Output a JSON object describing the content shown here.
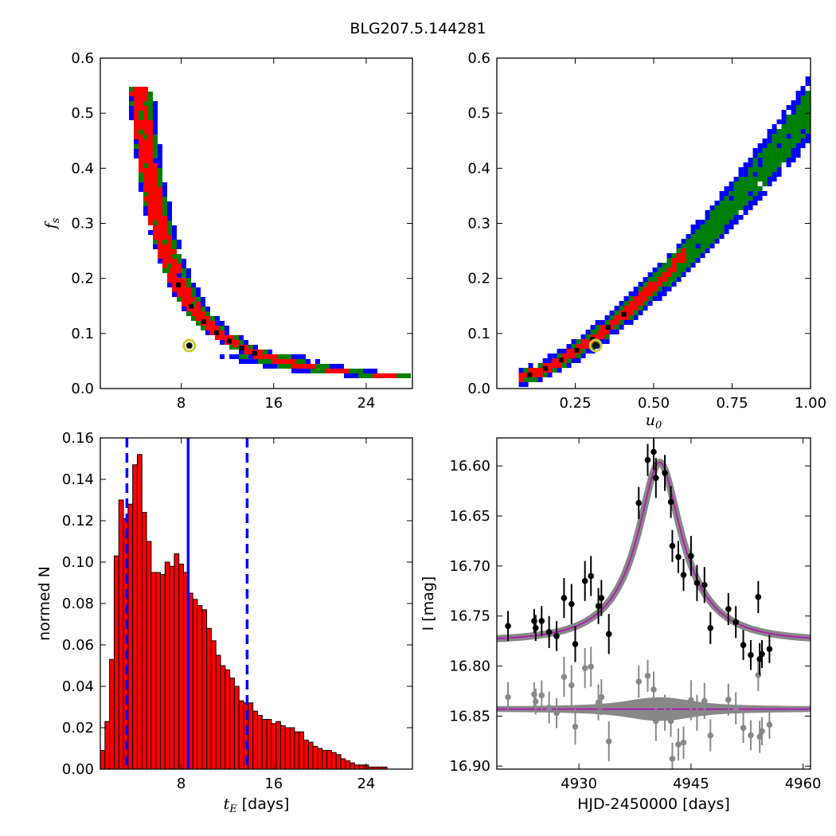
{
  "figure": {
    "title": "BLG207.5.144281"
  },
  "chart_data": [
    {
      "name": "fs-vs-tE",
      "type": "heatmap",
      "xlabel": "",
      "ylabel_main": "f",
      "ylabel_sub": "s",
      "xlim": [
        1,
        28
      ],
      "ylim": [
        0,
        0.6
      ],
      "xticks": [
        8,
        16,
        24
      ],
      "yticks": [
        0.0,
        0.1,
        0.2,
        0.3,
        0.4,
        0.5,
        0.6
      ],
      "colors": {
        "outer": "#0000ff",
        "middle": "#008000",
        "inner": "#ff0000",
        "core": "#000000"
      },
      "curve": {
        "A": 0.55,
        "B": 0.52,
        "C": 0.0,
        "t_start": 4.2,
        "t_end": 27.0
      },
      "best_fit": {
        "x": 8.7,
        "y": 0.078
      }
    },
    {
      "name": "fs-vs-u0",
      "type": "heatmap",
      "xlabel_main": "u",
      "xlabel_sub": "0",
      "xlim": [
        0,
        1.0
      ],
      "ylim": [
        0,
        0.6
      ],
      "xticks": [
        0.25,
        0.5,
        0.75,
        1.0
      ],
      "yticks": [
        0.0,
        0.1,
        0.2,
        0.3,
        0.4,
        0.5,
        0.6
      ],
      "colors": {
        "outer": "#0000ff",
        "middle": "#008000",
        "inner": "#ff0000",
        "core": "#000000"
      },
      "curve": {
        "u_start": 0.07,
        "u_end": 1.0,
        "exponent": 1.45,
        "scale": 0.5
      },
      "best_fit": {
        "x": 0.315,
        "y": 0.078
      }
    },
    {
      "name": "tE-histogram",
      "type": "bar",
      "xlabel_main": "t",
      "xlabel_sub": "E",
      "xlabel_units": "[days]",
      "ylabel": "normed N",
      "xlim": [
        1,
        28
      ],
      "ylim": [
        0,
        0.16
      ],
      "xticks": [
        8,
        16,
        24
      ],
      "yticks": [
        0.0,
        0.02,
        0.04,
        0.06,
        0.08,
        0.1,
        0.12,
        0.14,
        0.16
      ],
      "bin_start": 1.0,
      "bin_width": 0.4,
      "values": [
        0.009,
        0.023,
        0.053,
        0.103,
        0.13,
        0.121,
        0.128,
        0.147,
        0.152,
        0.124,
        0.11,
        0.095,
        0.095,
        0.094,
        0.1,
        0.098,
        0.104,
        0.099,
        0.095,
        0.085,
        0.082,
        0.079,
        0.077,
        0.068,
        0.062,
        0.055,
        0.05,
        0.048,
        0.044,
        0.04,
        0.033,
        0.032,
        0.032,
        0.028,
        0.026,
        0.024,
        0.024,
        0.022,
        0.023,
        0.021,
        0.02,
        0.02,
        0.018,
        0.018,
        0.014,
        0.013,
        0.011,
        0.01,
        0.009,
        0.009,
        0.008,
        0.007,
        0.005,
        0.004,
        0.003,
        0.002,
        0.002,
        0.002,
        0.001,
        0.001,
        0.001,
        0.001
      ],
      "bar_color": "#ff0000",
      "median_line": 8.6,
      "interval_lines": [
        3.3,
        13.7
      ],
      "line_color": "#0000ff"
    },
    {
      "name": "lightcurve",
      "type": "scatter",
      "xlabel": "HJD-2450000 [days]",
      "ylabel": "I [mag]",
      "xlim": [
        4919,
        4961
      ],
      "ylim": [
        16.903,
        16.572
      ],
      "xticks": [
        4930,
        4945,
        4960
      ],
      "yticks": [
        16.6,
        16.65,
        16.7,
        16.75,
        16.8,
        16.85,
        16.9
      ],
      "ytick_labels": [
        "16.60",
        "16.65",
        "16.70",
        "16.75",
        "16.80",
        "16.85",
        "16.90"
      ],
      "model": {
        "t0": 4940.8,
        "tE": 8.6,
        "u0": 0.315,
        "fs": 0.078,
        "I0": 16.775
      },
      "residual_offset": 16.843,
      "model_color": "#aa22aa",
      "band_color": "#888888",
      "data_color": "#000000",
      "resid_color": "#888888",
      "points": [
        {
          "t": 4920.5,
          "mag": 16.76,
          "err": 0.015
        },
        {
          "t": 4924.0,
          "mag": 16.755,
          "err": 0.012
        },
        {
          "t": 4924.2,
          "mag": 16.762,
          "err": 0.013
        },
        {
          "t": 4925.0,
          "mag": 16.755,
          "err": 0.015
        },
        {
          "t": 4926.0,
          "mag": 16.766,
          "err": 0.016
        },
        {
          "t": 4927.0,
          "mag": 16.77,
          "err": 0.015
        },
        {
          "t": 4928.0,
          "mag": 16.732,
          "err": 0.02
        },
        {
          "t": 4929.0,
          "mag": 16.738,
          "err": 0.02
        },
        {
          "t": 4929.5,
          "mag": 16.778,
          "err": 0.018
        },
        {
          "t": 4930.8,
          "mag": 16.715,
          "err": 0.02
        },
        {
          "t": 4931.6,
          "mag": 16.71,
          "err": 0.02
        },
        {
          "t": 4932.6,
          "mag": 16.74,
          "err": 0.018
        },
        {
          "t": 4933.0,
          "mag": 16.732,
          "err": 0.018
        },
        {
          "t": 4934.0,
          "mag": 16.768,
          "err": 0.02
        },
        {
          "t": 4938.0,
          "mag": 16.637,
          "err": 0.016
        },
        {
          "t": 4939.2,
          "mag": 16.594,
          "err": 0.016
        },
        {
          "t": 4940.0,
          "mag": 16.586,
          "err": 0.018
        },
        {
          "t": 4940.3,
          "mag": 16.612,
          "err": 0.02
        },
        {
          "t": 4941.5,
          "mag": 16.607,
          "err": 0.018
        },
        {
          "t": 4942.3,
          "mag": 16.636,
          "err": 0.016
        },
        {
          "t": 4942.5,
          "mag": 16.68,
          "err": 0.016
        },
        {
          "t": 4943.3,
          "mag": 16.691,
          "err": 0.016
        },
        {
          "t": 4944.0,
          "mag": 16.709,
          "err": 0.016
        },
        {
          "t": 4945.0,
          "mag": 16.69,
          "err": 0.02
        },
        {
          "t": 4945.8,
          "mag": 16.717,
          "err": 0.018
        },
        {
          "t": 4946.8,
          "mag": 16.719,
          "err": 0.018
        },
        {
          "t": 4947.6,
          "mag": 16.762,
          "err": 0.016
        },
        {
          "t": 4950.0,
          "mag": 16.743,
          "err": 0.016
        },
        {
          "t": 4951.0,
          "mag": 16.756,
          "err": 0.016
        },
        {
          "t": 4952.0,
          "mag": 16.779,
          "err": 0.015
        },
        {
          "t": 4953.0,
          "mag": 16.789,
          "err": 0.015
        },
        {
          "t": 4954.0,
          "mag": 16.731,
          "err": 0.016
        },
        {
          "t": 4954.2,
          "mag": 16.793,
          "err": 0.016
        },
        {
          "t": 4954.5,
          "mag": 16.788,
          "err": 0.014
        },
        {
          "t": 4955.5,
          "mag": 16.783,
          "err": 0.014
        }
      ]
    }
  ]
}
